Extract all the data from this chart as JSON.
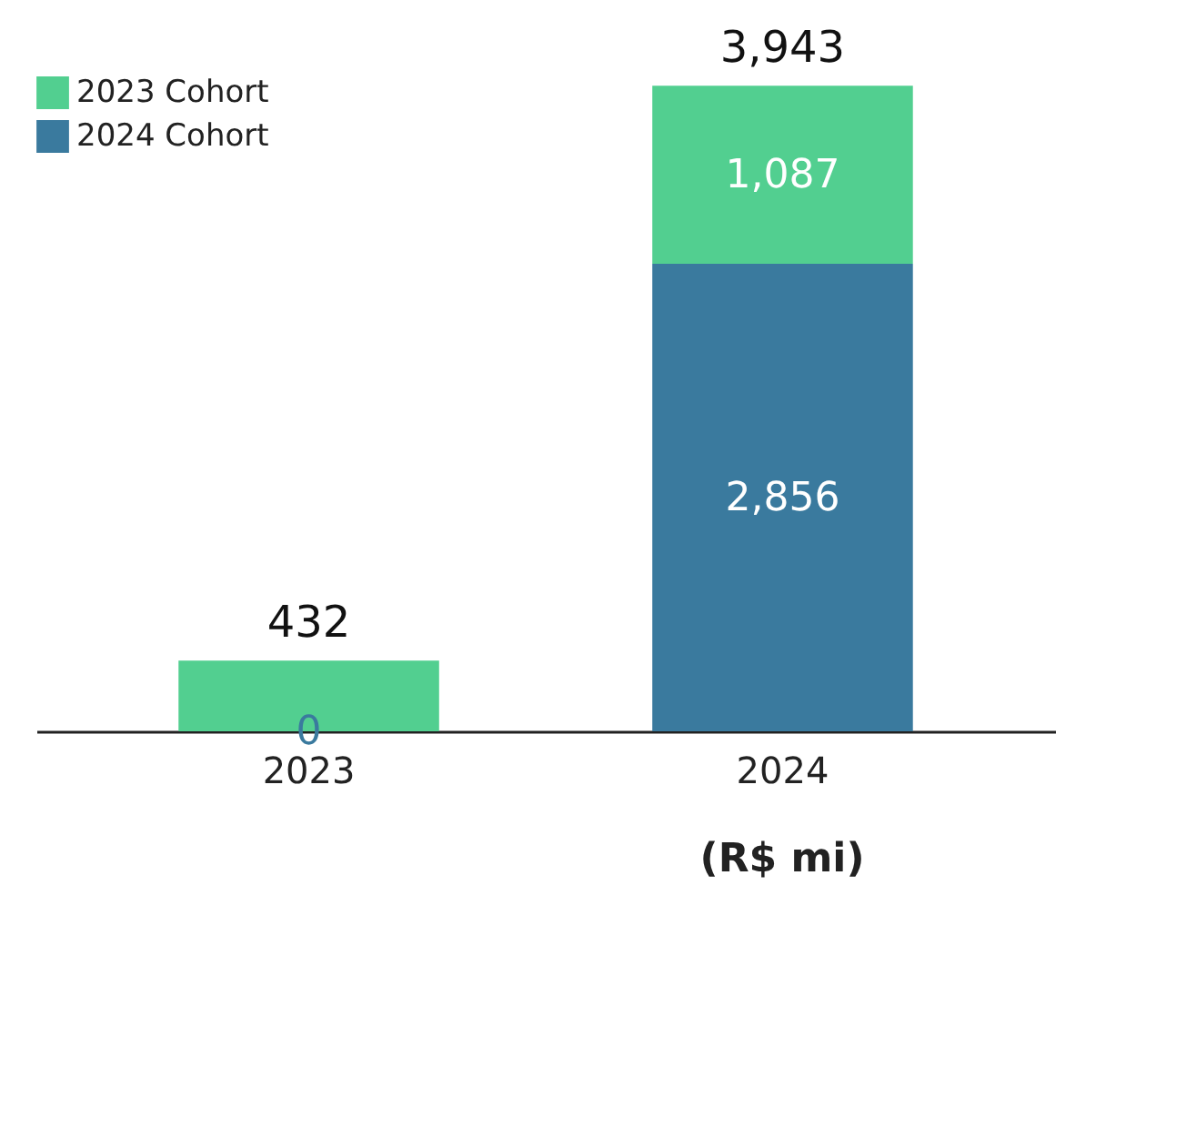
{
  "chart_data": {
    "type": "bar",
    "stacked": true,
    "categories": [
      "2023",
      "2024"
    ],
    "series": [
      {
        "name": "2024 Cohort",
        "color": "#3a7a9e",
        "values": [
          0,
          2856
        ],
        "value_labels": [
          "0",
          "2,856"
        ]
      },
      {
        "name": "2023 Cohort",
        "color": "#52cf90",
        "values": [
          432,
          1087
        ],
        "value_labels": [
          null,
          "1,087"
        ]
      }
    ],
    "totals": [
      "432",
      "3,943"
    ],
    "legend": "top left",
    "annotations": [
      "(R$ mi)"
    ]
  }
}
